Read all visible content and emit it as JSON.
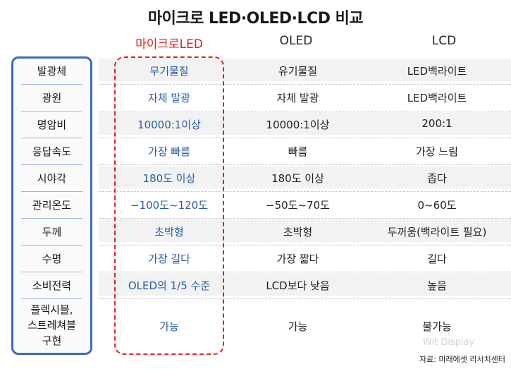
{
  "title": "마이크로 LED·OLED·LCD 비교",
  "columns": {
    "micro": "마이크로LED",
    "oled": "OLED",
    "lcd": "LCD"
  },
  "rows": [
    {
      "label": "발광체",
      "micro": "무기물질",
      "oled": "유기물질",
      "lcd": "LED백라이트"
    },
    {
      "label": "광원",
      "micro": "자체 발광",
      "oled": "자체 발광",
      "lcd": "LED백라이트"
    },
    {
      "label": "명암비",
      "micro": "10000:1이상",
      "oled": "10000:1이상",
      "lcd": "200:1"
    },
    {
      "label": "응답속도",
      "micro": "가장 빠름",
      "oled": "빠름",
      "lcd": "가장 느림"
    },
    {
      "label": "시야각",
      "micro": "180도 이상",
      "oled": "180도 이상",
      "lcd": "좁다"
    },
    {
      "label": "관리온도",
      "micro": "−100도~120도",
      "oled": "−50도~70도",
      "lcd": "0~60도"
    },
    {
      "label": "두께",
      "micro": "초박형",
      "oled": "초박형",
      "lcd": "두꺼움(백라이트 필요)"
    },
    {
      "label": "수명",
      "micro": "가장 길다",
      "oled": "가장 짧다",
      "lcd": "길다"
    },
    {
      "label": "소비전력",
      "micro": "OLED의 1/5 수준",
      "oled": "LCD보다 낮음",
      "lcd": "높음"
    }
  ],
  "last_row": {
    "label_lines": [
      "플렉시블,",
      "스트레쳐블",
      "구현"
    ],
    "micro": "가능",
    "oled": "가능",
    "lcd": "불가능"
  },
  "source": "자료: 미래에셋 리서치센터",
  "watermark": "Wit Display",
  "colors": {
    "accent_red": "#e0231c",
    "accent_blue": "#3a6cc0",
    "micro_text": "#2a5caa"
  }
}
